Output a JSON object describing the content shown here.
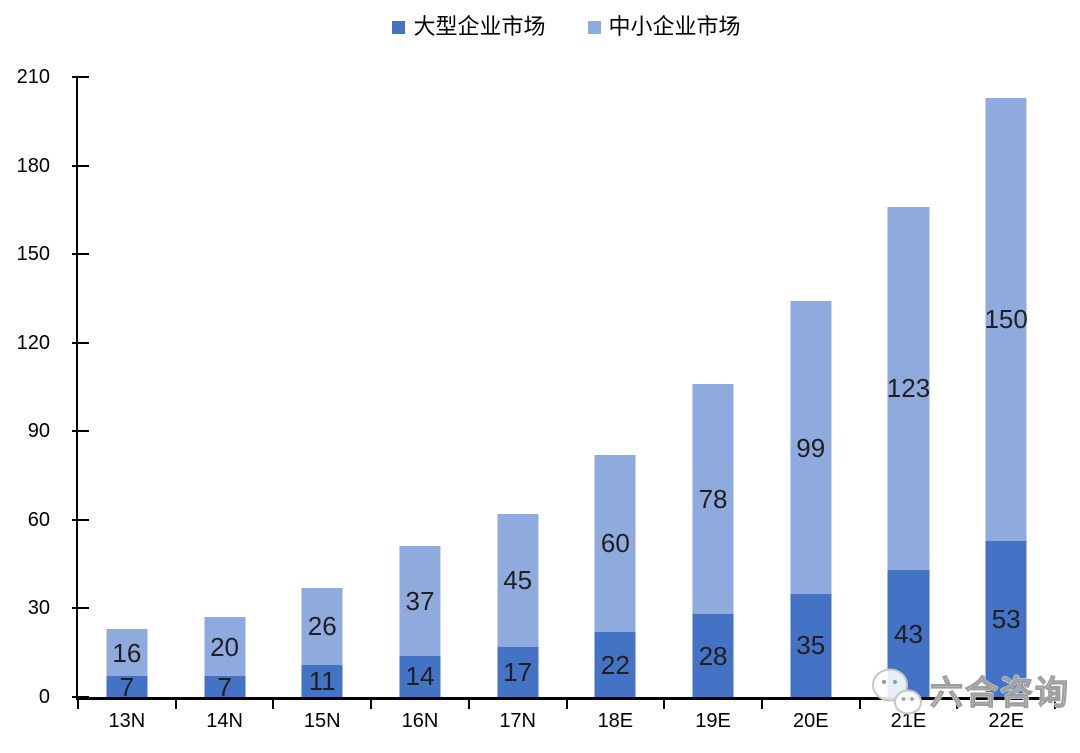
{
  "chart_data": {
    "type": "bar",
    "stacked": true,
    "title": "",
    "categories": [
      "13N",
      "14N",
      "15N",
      "16N",
      "17N",
      "18E",
      "19E",
      "20E",
      "21E",
      "22E"
    ],
    "series": [
      {
        "name": "大型企业市场",
        "color": "#4472C4",
        "values": [
          7,
          7,
          11,
          14,
          17,
          22,
          28,
          35,
          43,
          53
        ]
      },
      {
        "name": "中小企业市场",
        "color": "#8FAADC",
        "values": [
          16,
          20,
          26,
          37,
          45,
          60,
          78,
          99,
          123,
          150
        ]
      }
    ],
    "totals": [
      23,
      27,
      37,
      51,
      62,
      82,
      106,
      134,
      166,
      203
    ],
    "ylim": [
      0,
      210
    ],
    "yticks": [
      0,
      30,
      60,
      90,
      120,
      150,
      180,
      210
    ],
    "grid": false,
    "legend_position": "top-center",
    "axis_color": "#000000",
    "data_label_color": "#1f1f1f"
  },
  "watermark": {
    "icon": "wechat-icon",
    "text": "六合咨询"
  }
}
